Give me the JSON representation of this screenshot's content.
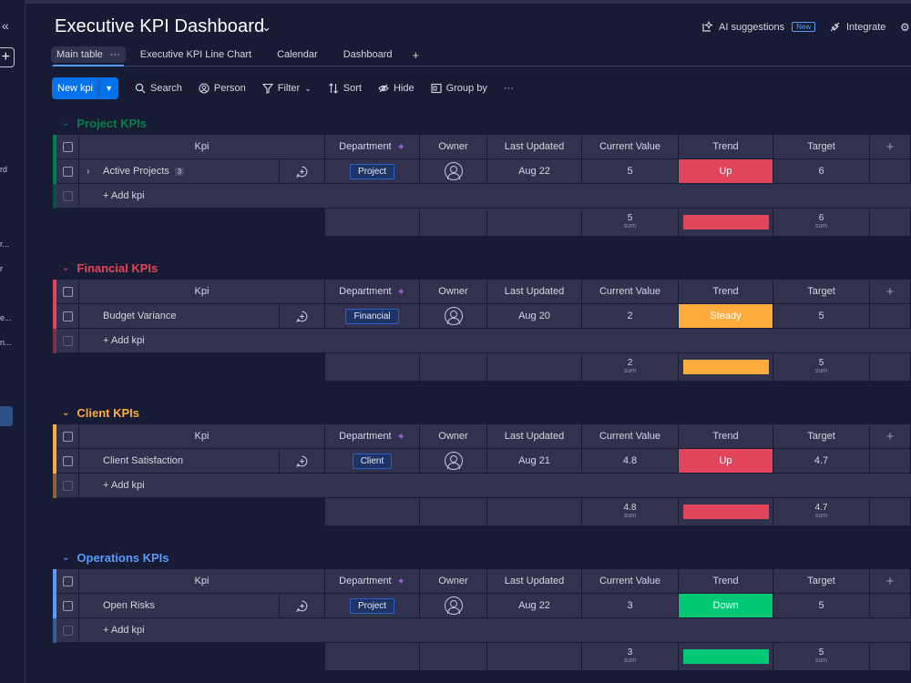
{
  "header": {
    "title": "Executive KPI Dashboard",
    "ai_label": "AI suggestions",
    "ai_badge": "New",
    "integrate_label": "Integrate"
  },
  "sidebar": {
    "fragments": [
      "rd",
      "r...",
      "r",
      "e...",
      "n..."
    ]
  },
  "tabs": [
    {
      "label": "Main table",
      "active": true
    },
    {
      "label": "Executive KPI Line Chart",
      "active": false
    },
    {
      "label": "Calendar",
      "active": false
    },
    {
      "label": "Dashboard",
      "active": false
    }
  ],
  "toolbar": {
    "new_label": "New kpi",
    "search": "Search",
    "person": "Person",
    "filter": "Filter",
    "sort": "Sort",
    "hide": "Hide",
    "group_by": "Group by",
    "more": "···"
  },
  "columns": {
    "kpi": "Kpi",
    "department": "Department",
    "owner": "Owner",
    "last_updated": "Last Updated",
    "current_value": "Current Value",
    "trend": "Trend",
    "target": "Target"
  },
  "add_row_label": "+ Add kpi",
  "sum_label": "sum",
  "groups": [
    {
      "name": "Project KPIs",
      "color": "#037f4c",
      "row": {
        "kpi": "Active Projects",
        "subitems": "3",
        "department": "Project",
        "last_updated": "Aug 22",
        "current_value": "5",
        "trend": "Up",
        "trend_color": "#e2445c",
        "target": "6"
      },
      "summary": {
        "current_value": "5",
        "target": "6"
      }
    },
    {
      "name": "Financial KPIs",
      "color": "#e2445c",
      "row": {
        "kpi": "Budget Variance",
        "subitems": "",
        "department": "Financial",
        "last_updated": "Aug 20",
        "current_value": "2",
        "trend": "Steady",
        "trend_color": "#fdab3d",
        "target": "5"
      },
      "summary": {
        "current_value": "2",
        "target": "5"
      }
    },
    {
      "name": "Client KPIs",
      "color": "#fdab3d",
      "row": {
        "kpi": "Client Satisfaction",
        "subitems": "",
        "department": "Client",
        "last_updated": "Aug 21",
        "current_value": "4.8",
        "trend": "Up",
        "trend_color": "#e2445c",
        "target": "4.7"
      },
      "summary": {
        "current_value": "4.8",
        "target": "4.7"
      }
    },
    {
      "name": "Operations KPIs",
      "color": "#579bfc",
      "row": {
        "kpi": "Open Risks",
        "subitems": "",
        "department": "Project",
        "last_updated": "Aug 22",
        "current_value": "3",
        "trend": "Down",
        "trend_color": "#00c875",
        "target": "5"
      },
      "summary": {
        "current_value": "3",
        "target": "5"
      }
    }
  ]
}
